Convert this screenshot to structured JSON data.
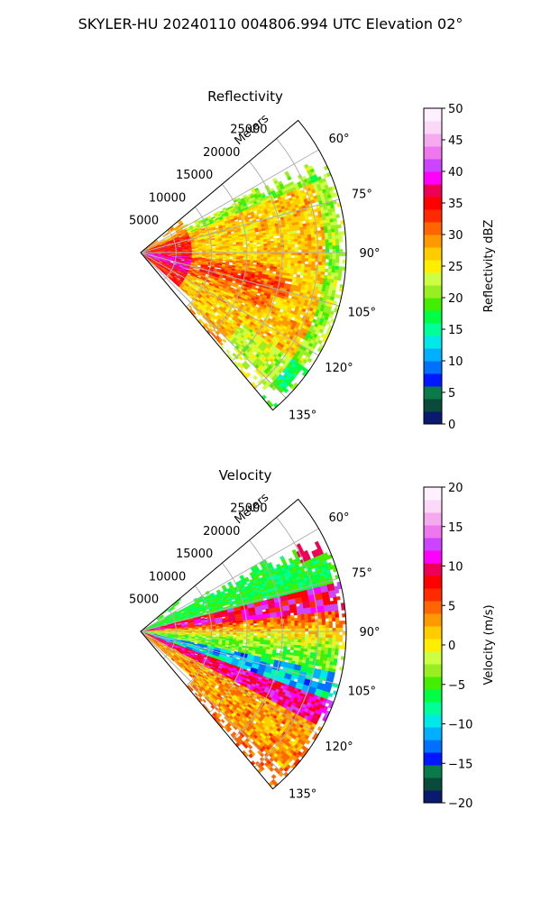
{
  "figure_title": "SKYLER-HU  20240110  004806.994 UTC Elevation 02°",
  "chart_data": [
    {
      "type": "heatmap",
      "title": "Reflectivity",
      "range_axis_label": "Meters",
      "range_ticks": [
        5000,
        10000,
        15000,
        20000,
        25000
      ],
      "range_tick_labels": [
        "5000",
        "10000",
        "15000",
        "20000",
        "25000"
      ],
      "azimuth_range_deg": [
        50,
        140
      ],
      "azimuth_ticks": [
        60,
        75,
        90,
        105,
        120,
        135
      ],
      "azimuth_tick_labels": [
        "60°",
        "75°",
        "90°",
        "105°",
        "120°",
        "135°"
      ],
      "max_range_m": 29000,
      "grid": true,
      "colorbar": {
        "label": "Reflectivity dBZ",
        "min": 0,
        "max": 50,
        "ticks": [
          0,
          5,
          10,
          15,
          20,
          25,
          30,
          35,
          40,
          45,
          50
        ],
        "tick_labels": [
          "0",
          "5",
          "10",
          "15",
          "20",
          "25",
          "30",
          "35",
          "40",
          "45",
          "50"
        ],
        "colors": [
          "#0a1a6e",
          "#0a4a3a",
          "#0a7a4a",
          "#0018ff",
          "#0070ff",
          "#00b0ff",
          "#00e8e8",
          "#00ff99",
          "#00ff44",
          "#44ee00",
          "#99ee22",
          "#ccff44",
          "#ffee00",
          "#ffcc00",
          "#ff9900",
          "#ff6600",
          "#ff2a00",
          "#ff0000",
          "#ee0055",
          "#ff00ff",
          "#cc44ff",
          "#ee77ee",
          "#f5aaf0",
          "#fbd8f8",
          "#fff0ff"
        ]
      }
    },
    {
      "type": "heatmap",
      "title": "Velocity",
      "range_axis_label": "Meters",
      "range_ticks": [
        5000,
        10000,
        15000,
        20000,
        25000
      ],
      "range_tick_labels": [
        "5000",
        "10000",
        "15000",
        "20000",
        "25000"
      ],
      "azimuth_range_deg": [
        50,
        140
      ],
      "azimuth_ticks": [
        60,
        75,
        90,
        105,
        120,
        135
      ],
      "azimuth_tick_labels": [
        "60°",
        "75°",
        "90°",
        "105°",
        "120°",
        "135°"
      ],
      "max_range_m": 29000,
      "grid": true,
      "colorbar": {
        "label": "Velocity (m/s)",
        "min": -20,
        "max": 20,
        "ticks": [
          -20,
          -15,
          -10,
          -5,
          0,
          5,
          10,
          15,
          20
        ],
        "tick_labels": [
          "−20",
          "−15",
          "−10",
          "−5",
          "0",
          "5",
          "10",
          "15",
          "20"
        ],
        "colors": [
          "#0a1a6e",
          "#0a4a3a",
          "#0a7a4a",
          "#0018ff",
          "#0070ff",
          "#00b0ff",
          "#00e8e8",
          "#00ff99",
          "#00ff44",
          "#44ee00",
          "#99ee22",
          "#ccff44",
          "#ffee00",
          "#ffcc00",
          "#ff9900",
          "#ff6600",
          "#ff2a00",
          "#ff0000",
          "#ee0055",
          "#ff00ff",
          "#cc44ff",
          "#ee77ee",
          "#f5aaf0",
          "#fbd8f8",
          "#fff0ff"
        ]
      }
    }
  ]
}
